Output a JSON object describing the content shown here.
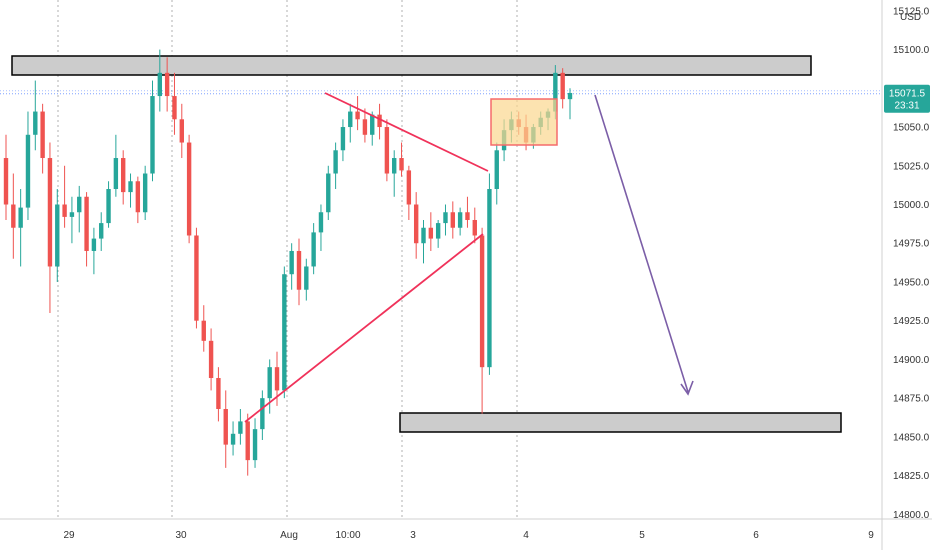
{
  "chart_data": {
    "type": "candlestick",
    "currency": "USD",
    "y_ticks": [
      {
        "label": "15125.0",
        "value": 15125
      },
      {
        "label": "15100.0",
        "value": 15100
      },
      {
        "label": "15050.0",
        "value": 15050
      },
      {
        "label": "15025.0",
        "value": 15025
      },
      {
        "label": "15000.0",
        "value": 15000
      },
      {
        "label": "14975.0",
        "value": 14975
      },
      {
        "label": "14950.0",
        "value": 14950
      },
      {
        "label": "14925.0",
        "value": 14925
      },
      {
        "label": "14900.0",
        "value": 14900
      },
      {
        "label": "14875.0",
        "value": 14875
      },
      {
        "label": "14850.0",
        "value": 14850
      },
      {
        "label": "14825.0",
        "value": 14825
      },
      {
        "label": "14800.0",
        "value": 14800
      }
    ],
    "x_ticks": [
      "29",
      "30",
      "Aug",
      "10:00",
      "3",
      "4",
      "5",
      "6",
      "9"
    ],
    "ylim": [
      14797,
      15132
    ],
    "price_badge": {
      "value": "15071.5",
      "countdown": "23:31",
      "price": 15071.5,
      "color": "#26a69a"
    },
    "colors": {
      "up": "#26a69a",
      "down": "#ef5350",
      "trendline": "#f0325a",
      "arrow": "#7b5ea7",
      "zone_fill": "#cccccc",
      "box_fill": "#fbd78f",
      "box_stroke": "#f56b6b",
      "price_line": "#2962ff"
    },
    "candles": [
      [
        15030,
        15045,
        14990,
        15000
      ],
      [
        15000,
        15020,
        14965,
        14985
      ],
      [
        14985,
        15010,
        14960,
        14998
      ],
      [
        14998,
        15060,
        14990,
        15045
      ],
      [
        15045,
        15080,
        15035,
        15060
      ],
      [
        15060,
        15065,
        15020,
        15030
      ],
      [
        15030,
        15040,
        14930,
        14960
      ],
      [
        14960,
        15010,
        14950,
        15000
      ],
      [
        15000,
        15025,
        14985,
        14992
      ],
      [
        14992,
        15005,
        14975,
        14995
      ],
      [
        14995,
        15012,
        14982,
        15005
      ],
      [
        15005,
        15008,
        14960,
        14970
      ],
      [
        14970,
        14985,
        14955,
        14978
      ],
      [
        14978,
        14995,
        14970,
        14988
      ],
      [
        14988,
        15015,
        14985,
        15010
      ],
      [
        15010,
        15045,
        15005,
        15030
      ],
      [
        15030,
        15035,
        15000,
        15008
      ],
      [
        15008,
        15020,
        14998,
        15015
      ],
      [
        15015,
        15018,
        14988,
        14995
      ],
      [
        14995,
        15025,
        14990,
        15020
      ],
      [
        15020,
        15080,
        15015,
        15070
      ],
      [
        15070,
        15100,
        15060,
        15085
      ],
      [
        15085,
        15095,
        15060,
        15070
      ],
      [
        15070,
        15085,
        15045,
        15055
      ],
      [
        15055,
        15065,
        15030,
        15040
      ],
      [
        15040,
        15045,
        14975,
        14980
      ],
      [
        14980,
        14985,
        14920,
        14925
      ],
      [
        14925,
        14935,
        14905,
        14912
      ],
      [
        14912,
        14920,
        14880,
        14888
      ],
      [
        14888,
        14895,
        14860,
        14868
      ],
      [
        14868,
        14880,
        14830,
        14845
      ],
      [
        14845,
        14860,
        14838,
        14852
      ],
      [
        14852,
        14868,
        14845,
        14860
      ],
      [
        14860,
        14865,
        14825,
        14835
      ],
      [
        14835,
        14862,
        14830,
        14855
      ],
      [
        14855,
        14880,
        14848,
        14875
      ],
      [
        14875,
        14900,
        14865,
        14895
      ],
      [
        14895,
        14905,
        14870,
        14880
      ],
      [
        14880,
        14960,
        14875,
        14955
      ],
      [
        14955,
        14975,
        14945,
        14970
      ],
      [
        14970,
        14978,
        14935,
        14945
      ],
      [
        14945,
        14965,
        14938,
        14960
      ],
      [
        14960,
        14988,
        14955,
        14982
      ],
      [
        14982,
        15000,
        14970,
        14995
      ],
      [
        14995,
        15025,
        14990,
        15020
      ],
      [
        15020,
        15040,
        15010,
        15035
      ],
      [
        15035,
        15055,
        15028,
        15050
      ],
      [
        15050,
        15065,
        15040,
        15060
      ],
      [
        15060,
        15070,
        15048,
        15055
      ],
      [
        15055,
        15062,
        15040,
        15045
      ],
      [
        15045,
        15060,
        15038,
        15058
      ],
      [
        15058,
        15065,
        15042,
        15050
      ],
      [
        15050,
        15055,
        15015,
        15020
      ],
      [
        15020,
        15035,
        15005,
        15030
      ],
      [
        15030,
        15040,
        15018,
        15022
      ],
      [
        15022,
        15025,
        14990,
        15000
      ],
      [
        15000,
        15008,
        14965,
        14975
      ],
      [
        14975,
        14990,
        14962,
        14985
      ],
      [
        14985,
        14995,
        14970,
        14978
      ],
      [
        14978,
        14990,
        14972,
        14988
      ],
      [
        14988,
        15000,
        14980,
        14995
      ],
      [
        14995,
        15002,
        14978,
        14985
      ],
      [
        14985,
        14998,
        14980,
        14995
      ],
      [
        14995,
        15005,
        14985,
        14990
      ],
      [
        14990,
        14998,
        14975,
        14980
      ],
      [
        14980,
        14985,
        14865,
        14895
      ],
      [
        14895,
        15020,
        14890,
        15010
      ],
      [
        15010,
        15040,
        15000,
        15035
      ],
      [
        15035,
        15055,
        15028,
        15048
      ],
      [
        15048,
        15060,
        15040,
        15055
      ],
      [
        15055,
        15060,
        15045,
        15050
      ],
      [
        15050,
        15058,
        15035,
        15040
      ],
      [
        15040,
        15052,
        15036,
        15050
      ],
      [
        15050,
        15060,
        15045,
        15056
      ],
      [
        15056,
        15062,
        15048,
        15060
      ],
      [
        15060,
        15090,
        15055,
        15085
      ],
      [
        15085,
        15088,
        15062,
        15068
      ],
      [
        15068,
        15075,
        15055,
        15072
      ]
    ]
  }
}
